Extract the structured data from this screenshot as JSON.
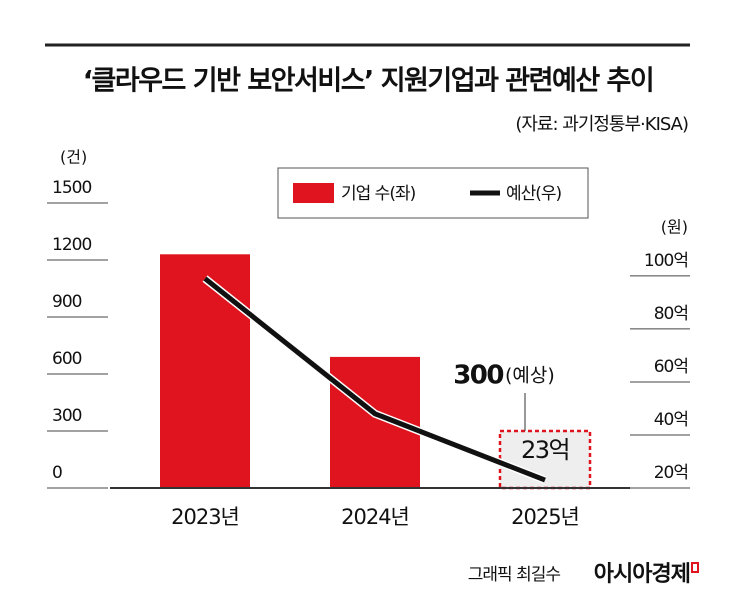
{
  "chart_data": {
    "type": "bar_line",
    "title": "‘클라우드 기반 보안서비스’ 지원기업과 관련예산 추이",
    "subtitle": "(자료: 과기정통부·KISA)",
    "y_unit": "(건)",
    "y2_unit": "(원)",
    "categories": [
      "2023년",
      "2024년",
      "2025년"
    ],
    "series": [
      {
        "name": "기업 수(좌)",
        "color": "#e0141e",
        "type": "bar",
        "values": [
          1230,
          690,
          300
        ],
        "styles": [
          "solid",
          "solid",
          "dashed"
        ]
      },
      {
        "name": "예산(우)",
        "color": "#111111",
        "type": "line",
        "axis": "y2",
        "values": [
          99,
          48,
          23
        ],
        "value_labels": [
          null,
          null,
          "23억"
        ]
      }
    ],
    "annotation": "(예상)",
    "ylim": [
      0,
      1500
    ],
    "yticks": [
      0,
      300,
      600,
      900,
      1200,
      1500
    ],
    "y2lim": [
      20,
      127.5
    ],
    "y2ticks": [
      {
        "value": 20,
        "label": "20억"
      },
      {
        "value": 40,
        "label": "40억"
      },
      {
        "value": 60,
        "label": "60억"
      },
      {
        "value": 80,
        "label": "80억"
      },
      {
        "value": 100,
        "label": "100억"
      }
    ],
    "legend": "top",
    "credit": "그래픽 최길수",
    "publisher": "아시아경제"
  }
}
